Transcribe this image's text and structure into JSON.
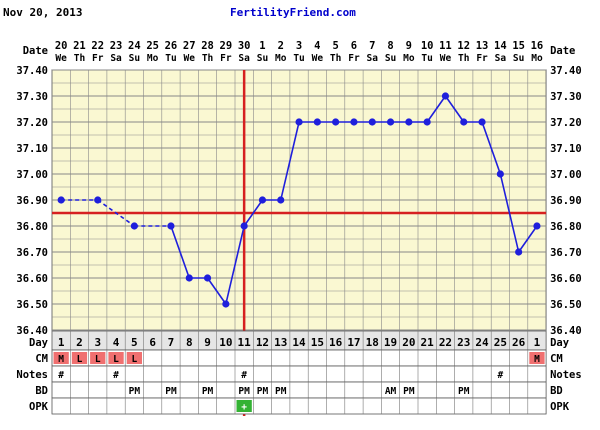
{
  "header": {
    "start_date": "Nov 20, 2013",
    "site": "FertilityFriend.com"
  },
  "row_labels": {
    "date": "Date",
    "day": "Day",
    "cm": "CM",
    "notes": "Notes",
    "bd": "BD",
    "opk": "OPK"
  },
  "colors": {
    "background": "#faf8d2",
    "grid": "#888888",
    "line": "#1f1fdc",
    "coverline": "#d62020",
    "cm_pink": "#f07070",
    "opk_green": "#33b233",
    "label_band": "#e6e6e6"
  },
  "chart_data": {
    "type": "line",
    "title": "",
    "ylabel": "",
    "ylim": [
      36.4,
      37.4
    ],
    "yticks": [
      "37.40",
      "37.30",
      "37.20",
      "37.10",
      "37.00",
      "36.90",
      "36.80",
      "36.70",
      "36.60",
      "36.50",
      "36.40"
    ],
    "grid": true,
    "dates": [
      "20",
      "21",
      "22",
      "23",
      "24",
      "25",
      "26",
      "27",
      "28",
      "29",
      "30",
      "1",
      "2",
      "3",
      "4",
      "5",
      "6",
      "7",
      "8",
      "9",
      "10",
      "11",
      "12",
      "13",
      "14",
      "15",
      "16"
    ],
    "weekdays": [
      "We",
      "Th",
      "Fr",
      "Sa",
      "Su",
      "Mo",
      "Tu",
      "We",
      "Th",
      "Fr",
      "Sa",
      "Su",
      "Mo",
      "Tu",
      "We",
      "Th",
      "Fr",
      "Sa",
      "Su",
      "Mo",
      "Tu",
      "We",
      "Th",
      "Fr",
      "Sa",
      "Su",
      "Mo"
    ],
    "cycle_days": [
      "1",
      "2",
      "3",
      "4",
      "5",
      "6",
      "7",
      "8",
      "9",
      "10",
      "11",
      "12",
      "13",
      "14",
      "15",
      "16",
      "17",
      "18",
      "19",
      "20",
      "21",
      "22",
      "23",
      "24",
      "25",
      "26",
      "1"
    ],
    "series": [
      {
        "values": [
          36.9,
          null,
          36.9,
          null,
          36.8,
          null,
          36.8,
          36.6,
          36.6,
          36.5,
          36.8,
          36.9,
          36.9,
          37.2,
          37.2,
          37.2,
          37.2,
          37.2,
          37.2,
          37.2,
          37.2,
          37.3,
          37.2,
          37.2,
          37.0,
          36.7,
          36.8
        ]
      }
    ],
    "dashed_segments": [
      [
        0,
        2
      ],
      [
        2,
        4
      ],
      [
        4,
        6
      ]
    ],
    "coverline": 36.85,
    "ovulation_day_index": 10,
    "cm": [
      "M",
      "L",
      "L",
      "L",
      "L",
      "",
      "",
      "",
      "",
      "",
      "",
      "",
      "",
      "",
      "",
      "",
      "",
      "",
      "",
      "",
      "",
      "",
      "",
      "",
      "",
      "",
      "M"
    ],
    "notes": [
      "#",
      "",
      "",
      "#",
      "",
      "",
      "",
      "",
      "",
      "",
      "#",
      "",
      "",
      "",
      "",
      "",
      "",
      "",
      "",
      "",
      "",
      "",
      "",
      "",
      "#",
      "",
      ""
    ],
    "bd": [
      "",
      "",
      "",
      "",
      "PM",
      "",
      "PM",
      "",
      "PM",
      "",
      "PM",
      "PM",
      "PM",
      "",
      "",
      "",
      "",
      "",
      "AM",
      "PM",
      "",
      "",
      "PM",
      "",
      "",
      "",
      ""
    ],
    "opk": [
      "",
      "",
      "",
      "",
      "",
      "",
      "",
      "",
      "",
      "",
      "+",
      "",
      "",
      "",
      "",
      "",
      "",
      "",
      "",
      "",
      "",
      "",
      "",
      "",
      "",
      "",
      ""
    ]
  }
}
